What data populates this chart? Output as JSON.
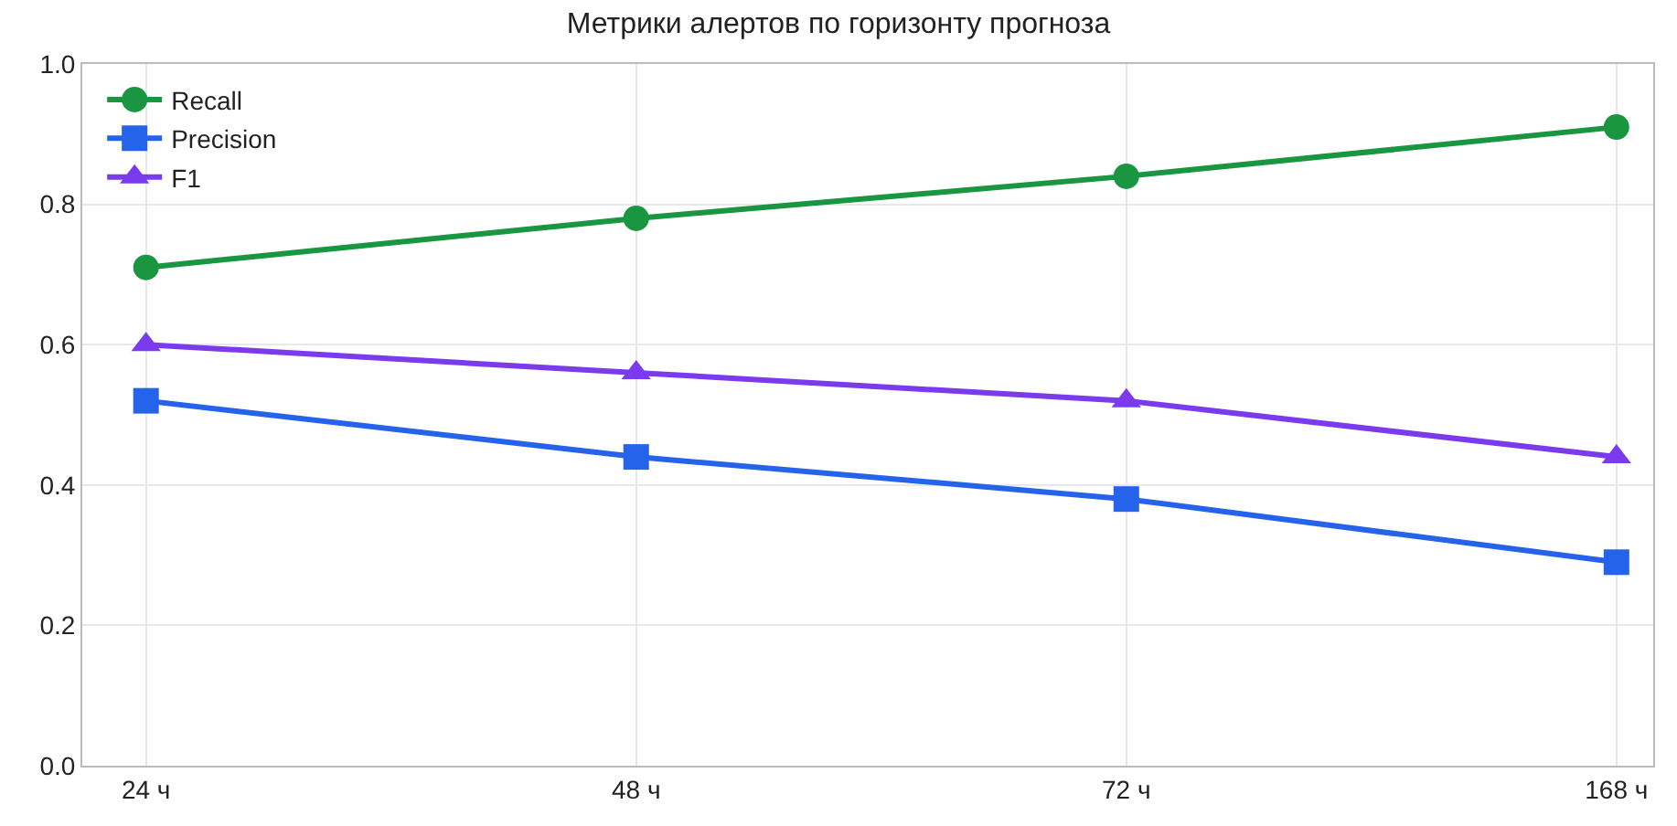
{
  "chart_data": {
    "type": "line",
    "title": "Метрики алертов по горизонту прогноза",
    "categories": [
      "24 ч",
      "48 ч",
      "72 ч",
      "168 ч"
    ],
    "series": [
      {
        "name": "Recall",
        "color": "#1a9641",
        "marker": "circle",
        "values": [
          0.71,
          0.78,
          0.84,
          0.91
        ]
      },
      {
        "name": "Precision",
        "color": "#2563eb",
        "marker": "square",
        "values": [
          0.52,
          0.44,
          0.38,
          0.29
        ]
      },
      {
        "name": "F1",
        "color": "#7c3aed",
        "marker": "triangle",
        "values": [
          0.6,
          0.56,
          0.52,
          0.44
        ]
      }
    ],
    "ylim": [
      0,
      1
    ],
    "yticks": [
      {
        "value": 0,
        "label": "0.0"
      },
      {
        "value": 0.2,
        "label": "0.2"
      },
      {
        "value": 0.4,
        "label": "0.4"
      },
      {
        "value": 0.6,
        "label": "0.6"
      },
      {
        "value": 0.8,
        "label": "0.8"
      },
      {
        "value": 1,
        "label": "1.0"
      }
    ],
    "grid": true,
    "legend": "top left",
    "line_style": "solid"
  }
}
